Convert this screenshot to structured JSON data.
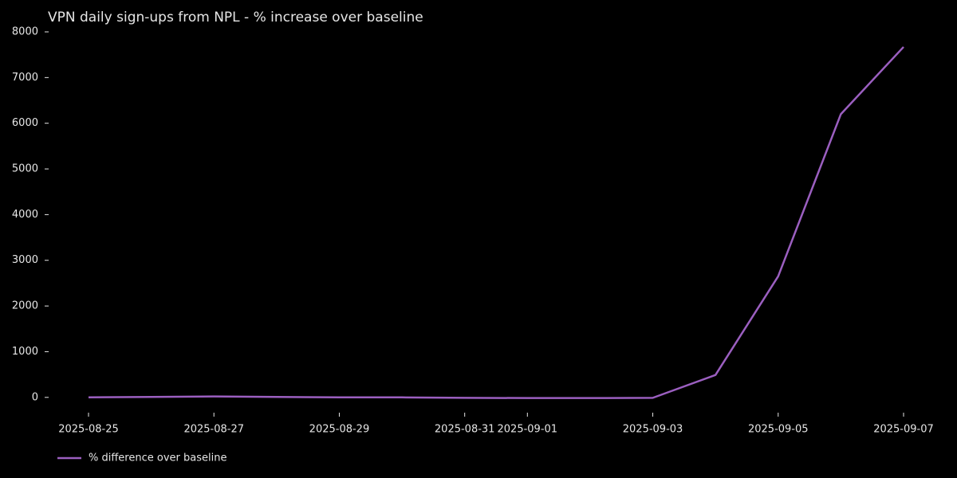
{
  "chart_data": {
    "type": "line",
    "title": "VPN daily sign-ups from NPL - % increase over baseline",
    "x": [
      "2025-08-25",
      "2025-08-26",
      "2025-08-27",
      "2025-08-28",
      "2025-08-29",
      "2025-08-30",
      "2025-08-31",
      "2025-09-01",
      "2025-09-02",
      "2025-09-03",
      "2025-09-04",
      "2025-09-05",
      "2025-09-06",
      "2025-09-07"
    ],
    "series": [
      {
        "name": "% difference over baseline",
        "color": "#9b5fc0",
        "values": [
          0,
          10,
          20,
          10,
          0,
          0,
          -10,
          -15,
          -15,
          -10,
          490,
          2650,
          6200,
          7670
        ]
      }
    ],
    "xlim": [
      "2025-08-25",
      "2025-09-07"
    ],
    "xticks": [
      "2025-08-25",
      "2025-08-27",
      "2025-08-29",
      "2025-08-31",
      "2025-09-01",
      "2025-09-03",
      "2025-09-05",
      "2025-09-07"
    ],
    "ylim": [
      -300,
      8000
    ],
    "yticks": [
      0,
      1000,
      2000,
      3000,
      4000,
      5000,
      6000,
      7000,
      8000
    ],
    "grid": false,
    "legend": "bottom-left"
  }
}
